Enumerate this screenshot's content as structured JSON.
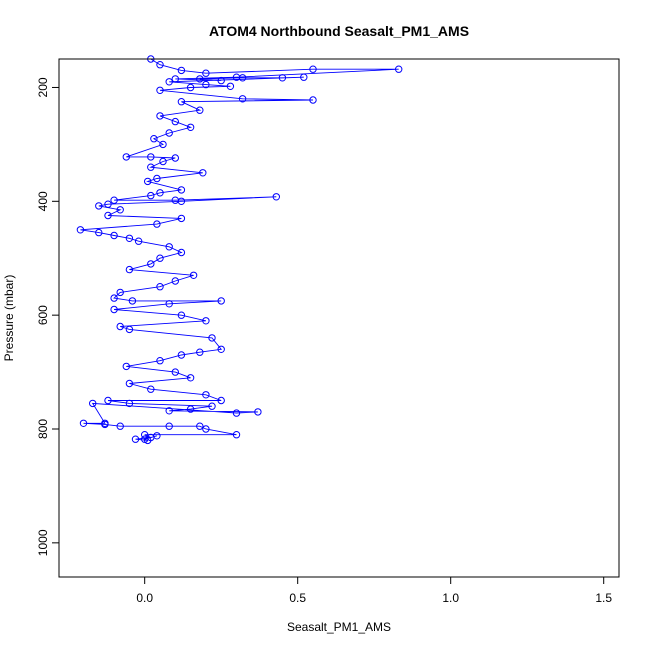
{
  "chart_data": {
    "type": "scatter",
    "title": "ATOM4 Northbound Seasalt_PM1_AMS",
    "xlabel": "Seasalt_PM1_AMS",
    "ylabel": "Pressure (mbar)",
    "xlim": [
      -0.28,
      1.55
    ],
    "ylim": [
      1060,
      150
    ],
    "y_reversed": true,
    "x_ticks": [
      0.0,
      0.5,
      1.0,
      1.5
    ],
    "x_tick_labels": [
      "0.0",
      "0.5",
      "1.0",
      "1.5"
    ],
    "y_ticks": [
      200,
      400,
      600,
      800,
      1000
    ],
    "y_tick_labels": [
      "200",
      "400",
      "600",
      "800",
      "1000"
    ],
    "grid": false,
    "legend": "none",
    "series": [
      {
        "style": "points-and-lines",
        "color": "#0000ff",
        "x": [
          0.02,
          0.05,
          0.12,
          0.2,
          0.55,
          0.83,
          0.3,
          0.1,
          0.25,
          0.18,
          0.32,
          0.45,
          0.52,
          0.08,
          0.2,
          0.28,
          0.15,
          0.05,
          0.32,
          0.55,
          0.12,
          0.18,
          0.05,
          0.1,
          0.15,
          0.08,
          0.03,
          0.06,
          -0.06,
          0.02,
          0.1,
          0.06,
          0.02,
          0.19,
          0.04,
          0.01,
          0.12,
          0.05,
          0.02,
          -0.1,
          0.1,
          0.43,
          0.12,
          -0.12,
          -0.15,
          -0.08,
          -0.12,
          0.12,
          0.04,
          -0.21,
          -0.15,
          -0.1,
          -0.05,
          -0.02,
          0.08,
          0.12,
          0.05,
          0.02,
          -0.05,
          0.16,
          0.1,
          0.05,
          -0.08,
          -0.1,
          -0.04,
          0.25,
          0.08,
          -0.1,
          0.12,
          0.2,
          -0.08,
          -0.05,
          0.22,
          0.25,
          0.18,
          0.12,
          0.05,
          -0.06,
          0.1,
          0.15,
          -0.05,
          0.02,
          0.2,
          0.25,
          -0.12,
          -0.05,
          0.22,
          0.15,
          0.08,
          0.37,
          0.3,
          -0.17,
          -0.13,
          -0.2,
          -0.13,
          -0.08,
          0.08,
          0.18,
          0.2,
          0.3,
          0.0,
          0.02,
          -0.03,
          0.01,
          0.0,
          0.04
        ],
        "y": [
          150,
          160,
          170,
          175,
          168,
          168,
          182,
          185,
          188,
          185,
          183,
          183,
          182,
          190,
          195,
          198,
          200,
          205,
          220,
          222,
          225,
          240,
          250,
          260,
          270,
          280,
          290,
          300,
          322,
          322,
          324,
          330,
          340,
          350,
          360,
          365,
          380,
          385,
          390,
          398,
          398,
          392,
          400,
          405,
          408,
          415,
          425,
          430,
          440,
          450,
          455,
          460,
          465,
          470,
          480,
          490,
          500,
          510,
          520,
          530,
          540,
          550,
          560,
          570,
          575,
          575,
          580,
          590,
          600,
          610,
          620,
          625,
          640,
          660,
          665,
          670,
          680,
          690,
          700,
          710,
          720,
          730,
          740,
          750,
          750,
          755,
          760,
          765,
          768,
          770,
          772,
          755,
          790,
          790,
          792,
          795,
          795,
          795,
          800,
          810,
          810,
          815,
          818,
          820,
          818,
          812
        ]
      }
    ]
  }
}
